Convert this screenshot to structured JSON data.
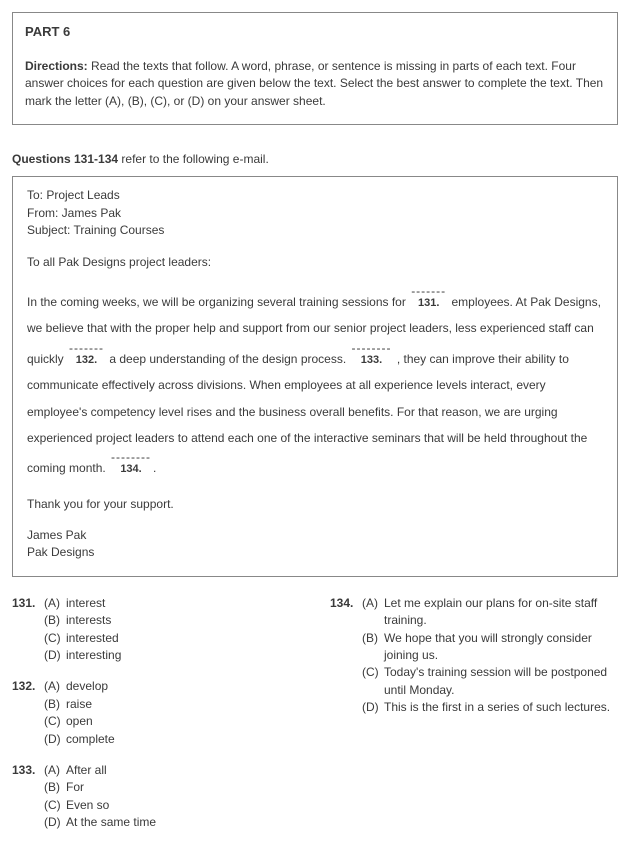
{
  "part": {
    "title": "PART 6",
    "directions_label": "Directions:",
    "directions_text": " Read the texts that follow. A word, phrase, or sentence is missing in parts of each text. Four answer choices for each question are given below the text. Select the best answer to complete the text. Then mark the letter (A), (B), (C), or (D) on your answer sheet."
  },
  "question_range": {
    "prefix": "Questions 131-134",
    "suffix": " refer to the following e-mail."
  },
  "email": {
    "to_label": "To: Project Leads",
    "from_label": "From: James Pak",
    "subject_label": "Subject: Training Courses",
    "salutation": "To all Pak Designs project leaders:",
    "seg1": "In the coming weeks, we will be organizing several training sessions for ",
    "blank131": "131.",
    "seg2": " employees. At Pak Designs, we believe that with the proper help and support from our senior project leaders, less experienced staff can quickly ",
    "blank132": "132.",
    "seg3": " a deep understanding of the design process. ",
    "blank133": "133.",
    "seg4": " , they can improve their ability to communicate effectively across divisions. When employees at all experience levels interact, every employee's competency level rises and the business overall benefits. For that reason, we are urging experienced project leaders to attend each one of the interactive seminars that will be held throughout the coming month. ",
    "blank134": "134.",
    "seg5": ".",
    "thanks": "Thank you for your support.",
    "sig_name": "James Pak",
    "sig_company": "Pak Designs",
    "dashes": "-------",
    "dashes_long": "--------"
  },
  "questions": [
    {
      "num": "131.",
      "choices": [
        {
          "letter": "(A)",
          "text": "interest"
        },
        {
          "letter": "(B)",
          "text": "interests"
        },
        {
          "letter": "(C)",
          "text": "interested"
        },
        {
          "letter": "(D)",
          "text": "interesting"
        }
      ]
    },
    {
      "num": "132.",
      "choices": [
        {
          "letter": "(A)",
          "text": "develop"
        },
        {
          "letter": "(B)",
          "text": "raise"
        },
        {
          "letter": "(C)",
          "text": "open"
        },
        {
          "letter": "(D)",
          "text": "complete"
        }
      ]
    },
    {
      "num": "133.",
      "choices": [
        {
          "letter": "(A)",
          "text": "After all"
        },
        {
          "letter": "(B)",
          "text": "For"
        },
        {
          "letter": "(C)",
          "text": "Even so"
        },
        {
          "letter": "(D)",
          "text": "At the same time"
        }
      ]
    },
    {
      "num": "134.",
      "choices": [
        {
          "letter": "(A)",
          "text": "Let me explain our plans for on-site staff training."
        },
        {
          "letter": "(B)",
          "text": "We hope that you will strongly consider joining us."
        },
        {
          "letter": "(C)",
          "text": "Today's training session will be postponed until Monday."
        },
        {
          "letter": "(D)",
          "text": "This is the first in a series of such lectures."
        }
      ]
    }
  ]
}
